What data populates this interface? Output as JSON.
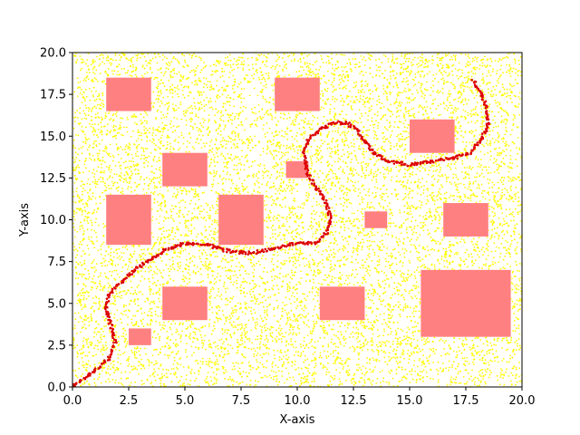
{
  "chart_data": {
    "type": "scatter",
    "title": "",
    "xlabel": "X-axis",
    "ylabel": "Y-axis",
    "xlim": [
      0,
      20
    ],
    "ylim": [
      0,
      20
    ],
    "xticks": [
      0.0,
      2.5,
      5.0,
      7.5,
      10.0,
      12.5,
      15.0,
      17.5,
      20.0
    ],
    "yticks": [
      0.0,
      2.5,
      5.0,
      7.5,
      10.0,
      12.5,
      15.0,
      17.5,
      20.0
    ],
    "xtick_labels": [
      "0.0",
      "2.5",
      "5.0",
      "7.5",
      "10.0",
      "12.5",
      "15.0",
      "17.5",
      "20.0"
    ],
    "ytick_labels": [
      "0.0",
      "2.5",
      "5.0",
      "7.5",
      "10.0",
      "12.5",
      "15.0",
      "17.5",
      "20.0"
    ],
    "grid": false,
    "legend": "none",
    "colors": {
      "samples": "#ffff00",
      "obstacles": "#ff8080",
      "path": "#dd0000",
      "start": "#cc0000"
    },
    "obstacles": [
      {
        "x": 1.5,
        "y": 16.5,
        "width": 2.0,
        "height": 2.0
      },
      {
        "x": 9.0,
        "y": 16.5,
        "width": 2.0,
        "height": 2.0
      },
      {
        "x": 15.0,
        "y": 14.0,
        "width": 2.0,
        "height": 2.0
      },
      {
        "x": 4.0,
        "y": 12.0,
        "width": 2.0,
        "height": 2.0
      },
      {
        "x": 9.5,
        "y": 12.5,
        "width": 1.0,
        "height": 1.0
      },
      {
        "x": 1.5,
        "y": 8.5,
        "width": 2.0,
        "height": 3.0
      },
      {
        "x": 6.5,
        "y": 8.5,
        "width": 2.0,
        "height": 3.0
      },
      {
        "x": 13.0,
        "y": 9.5,
        "width": 1.0,
        "height": 1.0
      },
      {
        "x": 16.5,
        "y": 9.0,
        "width": 2.0,
        "height": 2.0
      },
      {
        "x": 4.0,
        "y": 4.0,
        "width": 2.0,
        "height": 2.0
      },
      {
        "x": 11.0,
        "y": 4.0,
        "width": 2.0,
        "height": 2.0
      },
      {
        "x": 15.5,
        "y": 3.0,
        "width": 4.0,
        "height": 4.0
      },
      {
        "x": 2.5,
        "y": 2.5,
        "width": 1.0,
        "height": 1.0
      }
    ],
    "path": {
      "x": [
        0.0,
        0.5,
        1.0,
        1.6,
        1.9,
        1.7,
        1.5,
        1.6,
        2.1,
        2.7,
        3.3,
        4.0,
        5.0,
        6.0,
        7.0,
        8.0,
        9.0,
        10.0,
        10.8,
        11.3,
        11.5,
        11.3,
        10.8,
        10.4,
        10.3,
        10.5,
        11.0,
        11.6,
        12.2,
        12.7,
        13.0,
        13.4,
        14.0,
        15.0,
        16.0,
        17.0,
        17.7,
        18.2,
        18.5,
        18.4,
        18.1,
        17.8
      ],
      "y": [
        0.0,
        0.5,
        1.0,
        1.7,
        2.7,
        3.7,
        4.7,
        5.5,
        6.2,
        6.9,
        7.5,
        8.1,
        8.6,
        8.5,
        8.1,
        8.0,
        8.3,
        8.6,
        8.6,
        9.2,
        10.0,
        11.0,
        12.0,
        13.0,
        14.0,
        14.8,
        15.4,
        15.8,
        15.8,
        15.3,
        14.7,
        14.0,
        13.5,
        13.3,
        13.5,
        13.7,
        14.0,
        14.8,
        15.8,
        16.8,
        17.8,
        18.4
      ]
    },
    "start": {
      "x": 0.0,
      "y": 0.0
    },
    "samples": {
      "approx_count": 9000,
      "seed": 7
    }
  }
}
